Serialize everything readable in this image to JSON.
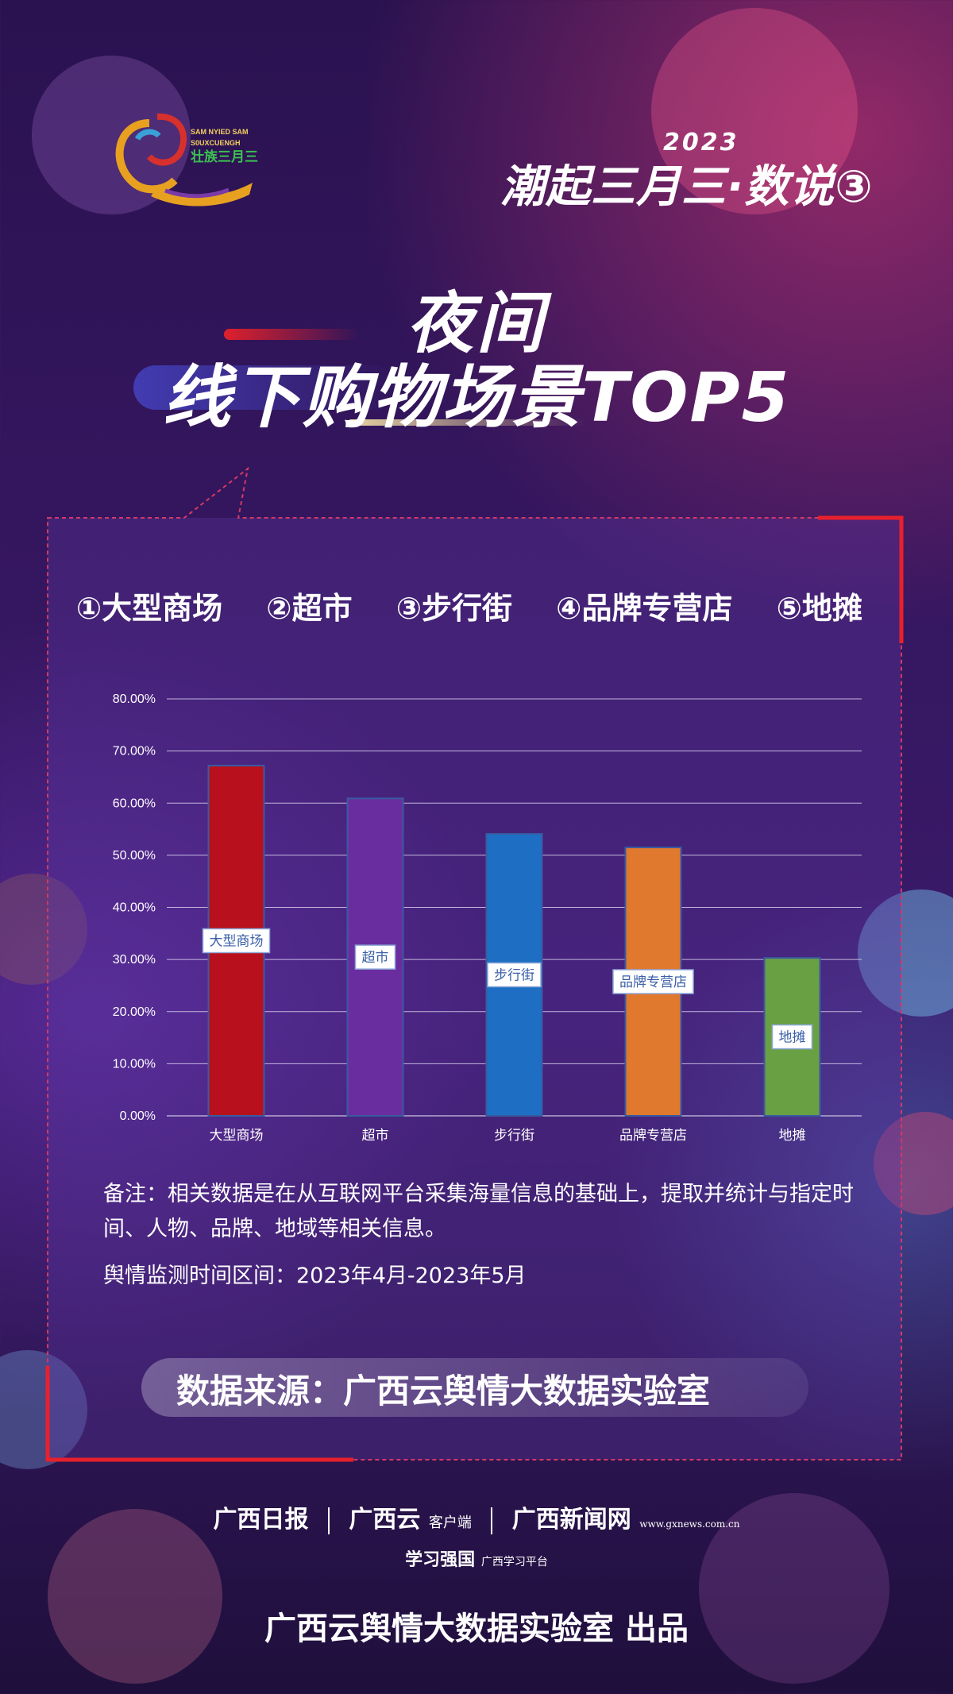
{
  "header": {
    "logo_text_1": "SAM NYIED SAM",
    "logo_text_2": "S0UXCUENGH",
    "logo_text_3": "壮族三月三",
    "series_year": "2023",
    "series_title": "潮起三月三·数说③"
  },
  "heading": {
    "line1": "夜间",
    "line2": "线下购物场景TOP5"
  },
  "ranking": [
    "①大型商场",
    "②超市",
    "③步行街",
    "④品牌专营店",
    "⑤地摊"
  ],
  "chart_data": {
    "type": "bar",
    "categories": [
      "大型商场",
      "超市",
      "步行街",
      "品牌专营店",
      "地摊"
    ],
    "values": [
      67.2,
      60.9,
      54.1,
      51.5,
      30.3
    ],
    "bar_labels": [
      "大型商场",
      "超市",
      "步行街",
      "品牌专营店",
      "地摊"
    ],
    "colors": [
      "#b8101c",
      "#6a2da0",
      "#1e6fc4",
      "#e0782e",
      "#6aa044"
    ],
    "yticks": [
      "0.00%",
      "10.00%",
      "20.00%",
      "30.00%",
      "40.00%",
      "50.00%",
      "60.00%",
      "70.00%",
      "80.00%"
    ],
    "ylim": [
      0,
      80
    ],
    "title": "",
    "xlabel": "",
    "ylabel": "",
    "grid": true
  },
  "notes": {
    "remark": "备注：相关数据是在从互联网平台采集海量信息的基础上，提取并统计与指定时间、人物、品牌、地域等相关信息。",
    "period": "舆情监测时间区间：2023年4月-2023年5月"
  },
  "source": "数据来源：广西云舆情大数据实验室",
  "footer": {
    "partner1": "广西日报",
    "partner2": "广西云",
    "partner2_sub": "客户端",
    "partner3": "广西新闻网",
    "partner3_sub": "www.gxnews.com.cn",
    "partner4": "学习强国",
    "partner4_sub": "广西学习平台",
    "producer": "广西云舆情大数据实验室 出品"
  }
}
